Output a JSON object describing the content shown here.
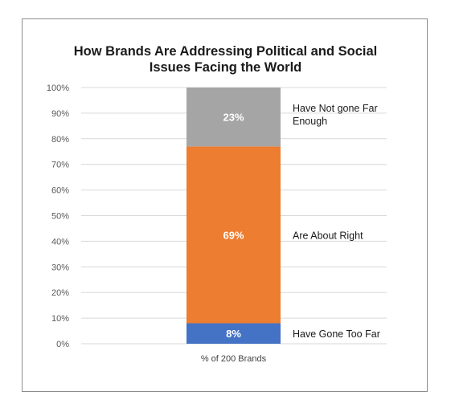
{
  "chart_data": {
    "type": "bar",
    "stacked": true,
    "title_lines": [
      "How Brands Are Addressing Political and Social",
      "Issues Facing the World"
    ],
    "categories": [
      "% of 200 Brands"
    ],
    "ylim": [
      0,
      100
    ],
    "yticks": [
      0,
      10,
      20,
      30,
      40,
      50,
      60,
      70,
      80,
      90,
      100
    ],
    "ytick_suffix": "%",
    "grid": true,
    "series": [
      {
        "name_lines": [
          "Have Gone Too Far"
        ],
        "values": [
          8
        ],
        "label": "8%",
        "color": "#4472c4"
      },
      {
        "name_lines": [
          "Are About Right"
        ],
        "values": [
          69
        ],
        "label": "69%",
        "color": "#ed7d31"
      },
      {
        "name_lines": [
          "Have Not gone Far",
          "Enough"
        ],
        "values": [
          23
        ],
        "label": "23%",
        "color": "#a5a5a5"
      }
    ]
  }
}
